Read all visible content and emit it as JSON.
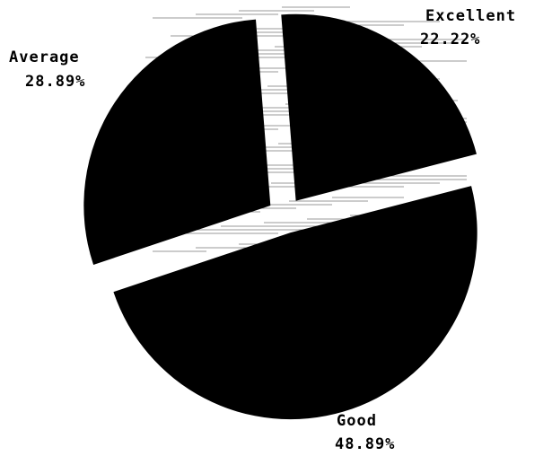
{
  "chart_data": {
    "type": "pie",
    "slices": [
      {
        "label": "Excellent",
        "percent_label": "22.22%",
        "value": 22.22
      },
      {
        "label": "Good",
        "percent_label": "48.89%",
        "value": 48.89
      },
      {
        "label": "Average",
        "percent_label": "28.89%",
        "value": 28.89
      }
    ],
    "exploded": true,
    "colors": {
      "slice": "#000000",
      "background": "#ffffff",
      "hatch": "#9a9a9a"
    }
  }
}
